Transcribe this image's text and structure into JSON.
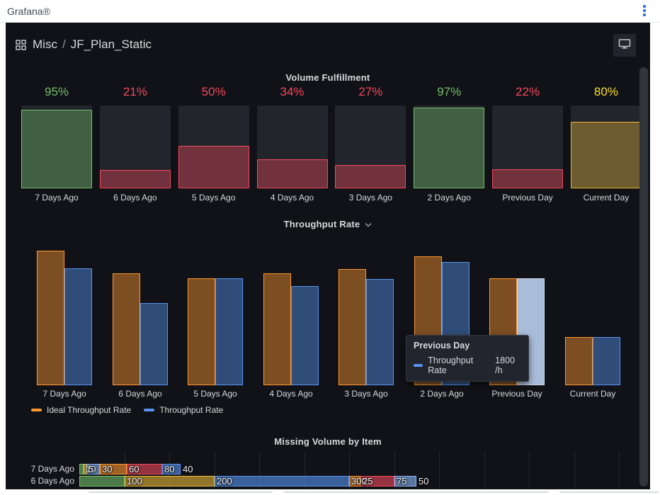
{
  "topbar": {
    "brand": "Grafana®"
  },
  "header": {
    "breadcrumb_section": "Misc",
    "breadcrumb_separator": "/",
    "breadcrumb_page": "JF_Plan_Static"
  },
  "palette": {
    "green": "#73BF69",
    "red": "#F2495C",
    "yellow": "#EAB839",
    "yellow_text": "#FADE2A",
    "orange": "#FF9830",
    "blue": "#5794F2",
    "light_blue": "#8AB8FF",
    "hover_fill": "#a9bcd9",
    "hover_border": "#ccd9ec",
    "kebab_blue": "#3274d9"
  },
  "chart_data": [
    {
      "type": "bar_gauge",
      "title": "Volume Fulfillment",
      "categories": [
        "7 Days Ago",
        "6 Days Ago",
        "5 Days Ago",
        "4 Days Ago",
        "3 Days Ago",
        "2 Days Ago",
        "Previous Day",
        "Current Day"
      ],
      "values": [
        95,
        21,
        50,
        34,
        27,
        97,
        22,
        80
      ],
      "unit": "%",
      "value_colors": [
        "green",
        "red",
        "red",
        "red",
        "red",
        "green",
        "red",
        "yellow"
      ],
      "ylim": [
        0,
        100
      ]
    },
    {
      "type": "bar",
      "title": "Throughput Rate",
      "categories": [
        "7 Days Ago",
        "6 Days Ago",
        "5 Days Ago",
        "4 Days Ago",
        "3 Days Ago",
        "2 Days Ago",
        "Previous Day",
        "Current Day"
      ],
      "series": [
        {
          "name": "Ideal Throughput Rate",
          "color": "orange",
          "values": [
            2270,
            1880,
            1800,
            1880,
            1950,
            2170,
            1800,
            800
          ]
        },
        {
          "name": "Throughput Rate",
          "color": "blue",
          "values": [
            1970,
            1370,
            1800,
            1670,
            1790,
            2070,
            1800,
            800
          ]
        }
      ],
      "ylim": [
        0,
        2400
      ],
      "unit": "/h",
      "legend_position": "bottom-left",
      "hover": {
        "category": "Previous Day",
        "category_index": 6,
        "series": "Throughput Rate",
        "value_label": "1800 /h"
      }
    },
    {
      "type": "stacked_bar_horizontal",
      "title": "Missing Volume by Item",
      "rows": [
        {
          "label": "7 Days Ago",
          "segments": [
            {
              "value": 10,
              "color": "green"
            },
            {
              "value": 5,
              "color": "yellow"
            },
            {
              "value": 30,
              "color": "light_blue"
            },
            {
              "value": 60,
              "color": "orange"
            },
            {
              "value": 80,
              "color": "red"
            },
            {
              "value": 40,
              "color": "blue"
            }
          ]
        },
        {
          "label": "6 Days Ago",
          "segments": [
            {
              "value": 100,
              "color": "green"
            },
            {
              "value": 200,
              "color": "yellow"
            },
            {
              "value": 300,
              "color": "blue"
            },
            {
              "value": 25,
              "color": "orange"
            },
            {
              "value": 75,
              "color": "red"
            },
            {
              "value": 50,
              "color": "light_blue"
            }
          ]
        }
      ],
      "x_grid_step": 100,
      "grid": true
    }
  ],
  "tooltip": {
    "title": "Previous Day",
    "series_label": "Throughput Rate",
    "value": "1800 /h"
  }
}
